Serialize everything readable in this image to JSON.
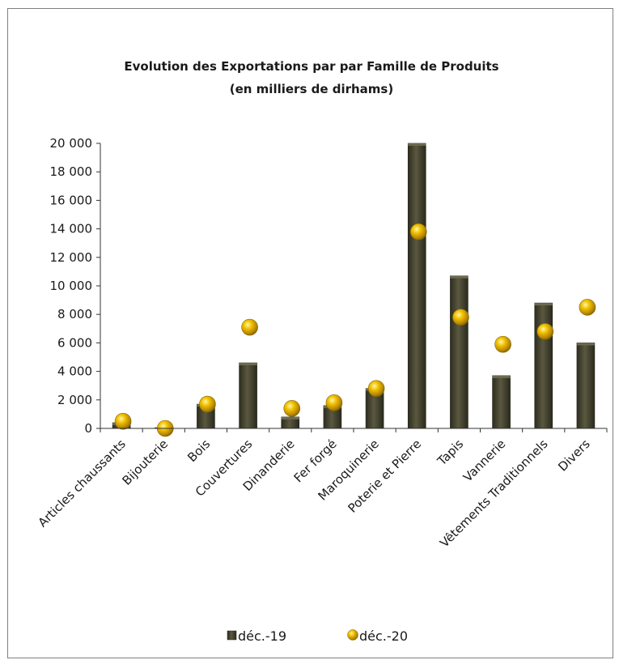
{
  "chart_data": {
    "type": "bar",
    "title": "Evolution des Exportations par par Famille de Produits",
    "subtitle": "(en milliers de dirhams)",
    "xlabel": "",
    "ylabel": "",
    "ylim": [
      0,
      20000
    ],
    "yticks": [
      0,
      2000,
      4000,
      6000,
      8000,
      10000,
      12000,
      14000,
      16000,
      18000,
      20000
    ],
    "ytick_labels": [
      "0",
      "2 000",
      "4 000",
      "6 000",
      "8 000",
      "10 000",
      "12 000",
      "14 000",
      "16 000",
      "18 000",
      "20 000"
    ],
    "grid": false,
    "legend_position": "bottom",
    "categories": [
      "Articles chaussants",
      "Bijouterie",
      "Bois",
      "Couvertures",
      "Dinanderie",
      "Fer forgé",
      "Maroquinerie",
      "Poterie et Pierre",
      "Tapis",
      "Vannerie",
      "Vêtements Traditionnels",
      "Divers"
    ],
    "series": [
      {
        "name": "déc.-19",
        "style": "bar",
        "color": "#4a4834",
        "values": [
          400,
          50,
          1700,
          4600,
          800,
          1600,
          2800,
          20000,
          10700,
          3700,
          8800,
          6000
        ]
      },
      {
        "name": "déc.-20",
        "style": "marker",
        "color": "#e0b000",
        "values": [
          500,
          0,
          1700,
          7100,
          1400,
          1800,
          2800,
          13800,
          7800,
          5900,
          6800,
          8500
        ]
      }
    ]
  }
}
